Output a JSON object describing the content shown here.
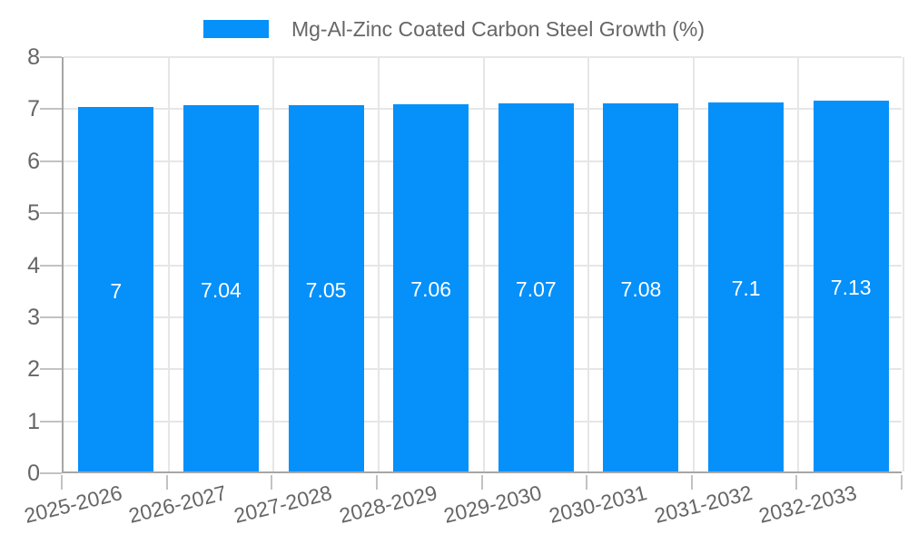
{
  "legend": {
    "label": "Mg-Al-Zinc Coated Carbon Steel Growth (%)"
  },
  "chart_data": {
    "type": "bar",
    "title": "Mg-Al-Zinc Coated Carbon Steel Growth (%)",
    "categories": [
      "2025-2026",
      "2026-2027",
      "2027-2028",
      "2028-2029",
      "2029-2030",
      "2030-2031",
      "2031-2032",
      "2032-2033"
    ],
    "values": [
      7,
      7.04,
      7.05,
      7.06,
      7.07,
      7.08,
      7.1,
      7.13
    ],
    "bar_labels": [
      "7",
      "7.04",
      "7.05",
      "7.06",
      "7.07",
      "7.08",
      "7.1",
      "7.13"
    ],
    "xlabel": "",
    "ylabel": "",
    "ylim": [
      0,
      8
    ],
    "ytick_step": 1,
    "ytick_labels_top_to_bottom": [
      "8",
      "7",
      "6",
      "5",
      "4",
      "3",
      "2",
      "1",
      "0"
    ],
    "grid": true,
    "legend_position": "top",
    "colors": {
      "bar": "#0590fa",
      "text": "#666666",
      "grid": "#e6e6e6",
      "tick": "#c2c2c2",
      "axis": "#a6a6a6",
      "value_label": "#ffffff",
      "background": "#ffffff"
    }
  }
}
